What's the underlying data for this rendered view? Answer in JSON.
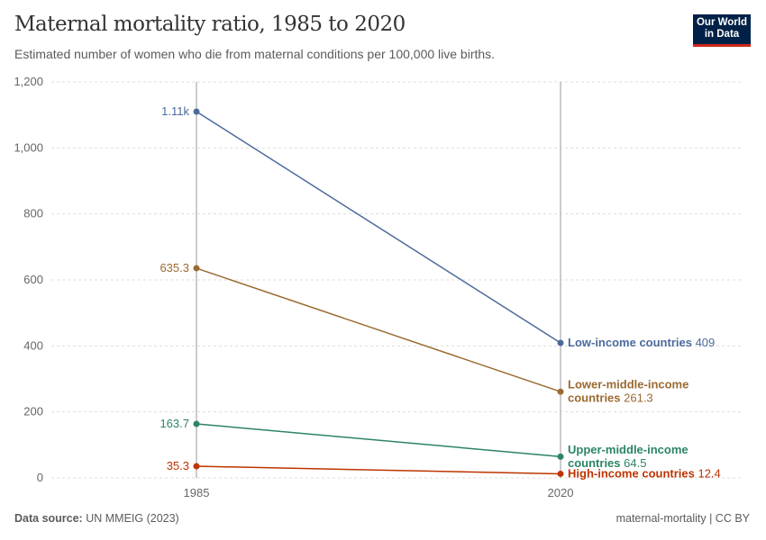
{
  "header": {
    "title": "Maternal mortality ratio, 1985 to 2020",
    "subtitle": "Estimated number of women who die from maternal conditions per 100,000 live births.",
    "logo": "Our World in Data"
  },
  "footer": {
    "source_label": "Data source:",
    "source": "UN MMEIG (2023)",
    "right": "maternal-mortality | CC BY"
  },
  "chart_data": {
    "type": "line",
    "x": [
      1985,
      2020
    ],
    "ylim": [
      0,
      1200
    ],
    "yticks": [
      0,
      200,
      400,
      600,
      800,
      1000,
      1200
    ],
    "ytick_labels": [
      "0",
      "200",
      "400",
      "600",
      "800",
      "1,000",
      "1,200"
    ],
    "xtick_labels": [
      "1985",
      "2020"
    ],
    "grid": true,
    "series": [
      {
        "name": "Low-income countries",
        "values": [
          1110,
          409
        ],
        "start_label": "1.11k",
        "end_label": "409",
        "color": "#4c6a9c",
        "label_lines": [
          "Low-income countries"
        ]
      },
      {
        "name": "Lower-middle-income countries",
        "values": [
          635.3,
          261.3
        ],
        "start_label": "635.3",
        "end_label": "261.3",
        "color": "#9a6a32",
        "label_lines": [
          "Lower-middle-income",
          "countries"
        ]
      },
      {
        "name": "Upper-middle-income countries",
        "values": [
          163.7,
          64.5
        ],
        "start_label": "163.7",
        "end_label": "64.5",
        "color": "#2c8465",
        "label_lines": [
          "Upper-middle-income",
          "countries"
        ]
      },
      {
        "name": "High-income countries",
        "values": [
          35.3,
          12.4
        ],
        "start_label": "35.3",
        "end_label": "12.4",
        "color": "#be3400",
        "label_lines": [
          "High-income countries"
        ]
      }
    ]
  }
}
